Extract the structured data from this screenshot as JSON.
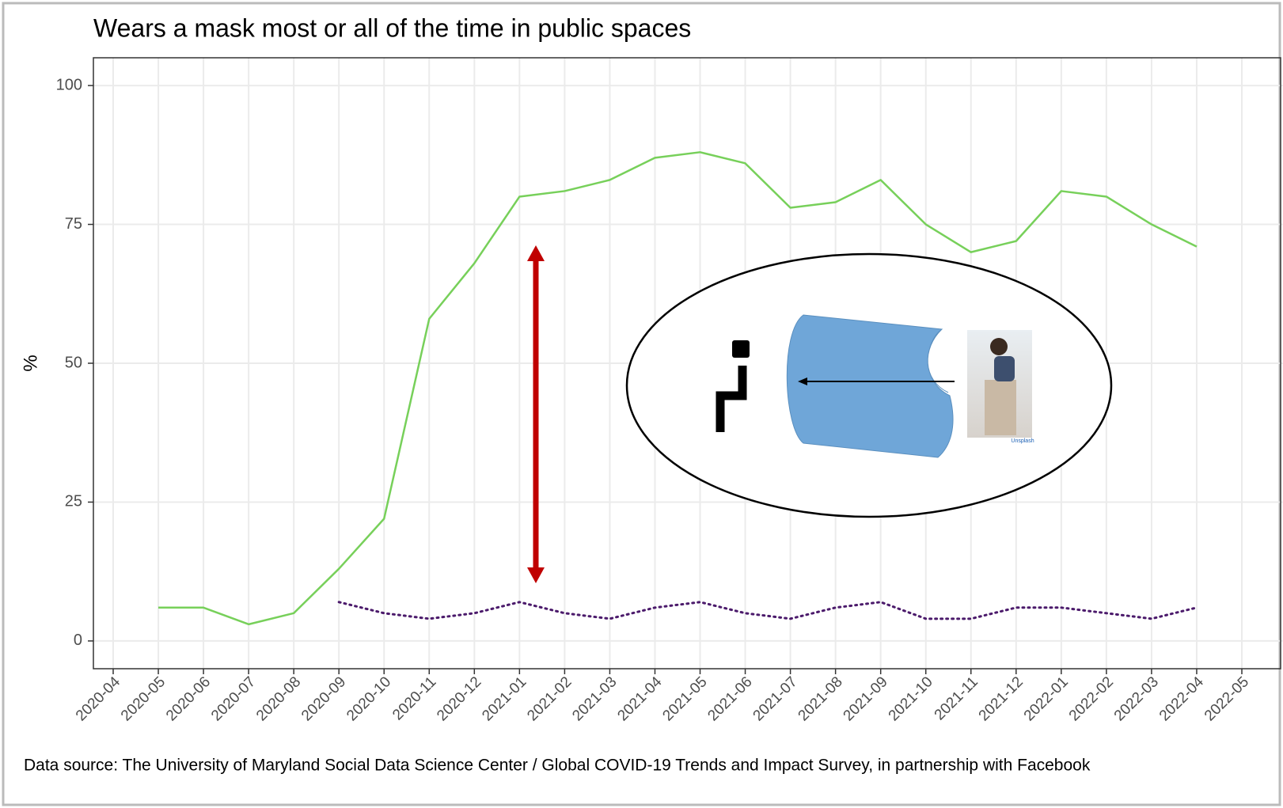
{
  "chart_data": {
    "type": "line",
    "title": "Wears a mask most or all of the time in public spaces",
    "y_label": "%",
    "caption": "Data source: The University of Maryland Social Data Science Center / Global COVID-19 Trends and Impact Survey, in partnership with Facebook",
    "x": [
      "2020-05",
      "2020-06",
      "2020-07",
      "2020-08",
      "2020-09",
      "2020-10",
      "2020-11",
      "2020-12",
      "2021-01",
      "2021-02",
      "2021-03",
      "2021-04",
      "2021-05",
      "2021-06",
      "2021-07",
      "2021-08",
      "2021-09",
      "2021-10",
      "2021-11",
      "2021-12",
      "2022-01",
      "2022-02",
      "2022-03",
      "2022-04"
    ],
    "series": [
      {
        "color": "#77d05a",
        "style": "solid",
        "values": [
          6,
          6,
          3,
          5,
          13,
          22,
          58,
          68,
          80,
          81,
          83,
          87,
          88,
          86,
          78,
          79,
          83,
          75,
          70,
          72,
          81,
          80,
          75,
          71
        ]
      },
      {
        "color": "#4b1a6b",
        "style": "dotted",
        "values": [
          null,
          null,
          null,
          null,
          7,
          5,
          4,
          5,
          7,
          5,
          4,
          6,
          7,
          5,
          4,
          6,
          7,
          4,
          4,
          6,
          6,
          5,
          4,
          6
        ]
      }
    ],
    "xlim": [
      "2020-04",
      "2022-05"
    ],
    "xticks": [
      "2020-04",
      "2020-05",
      "2020-06",
      "2020-07",
      "2020-08",
      "2020-09",
      "2020-10",
      "2020-11",
      "2020-12",
      "2021-01",
      "2021-02",
      "2021-03",
      "2021-04",
      "2021-05",
      "2021-06",
      "2021-07",
      "2021-08",
      "2021-09",
      "2021-10",
      "2021-11",
      "2021-12",
      "2022-01",
      "2022-02",
      "2022-03",
      "2022-04",
      "2022-05"
    ],
    "ylim": [
      -5,
      105
    ],
    "yticks": [
      0,
      25,
      50,
      75,
      100
    ],
    "grid": true
  },
  "overlay": {
    "image_credit": "Unsplash"
  }
}
